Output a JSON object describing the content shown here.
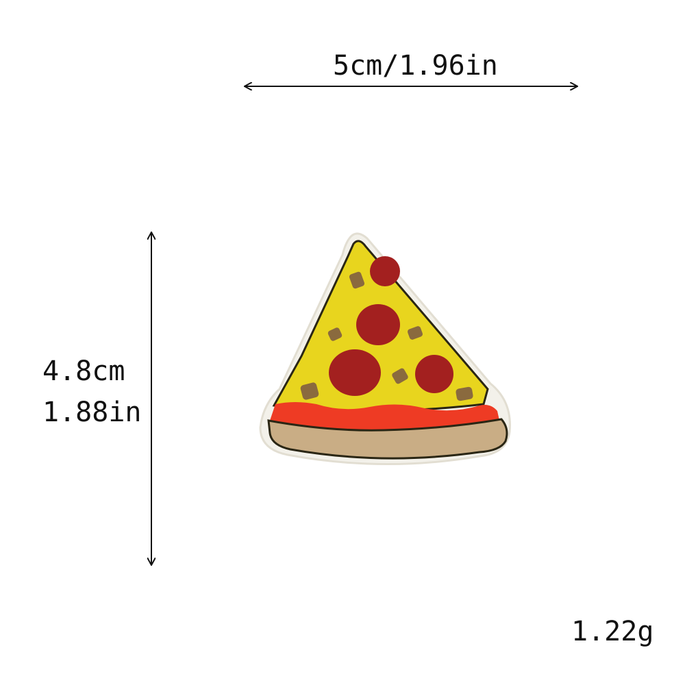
{
  "dimensions": {
    "width_label": "5cm/1.96in",
    "height_cm": "4.8cm",
    "height_in": "1.88in"
  },
  "weight_label": "1.22g",
  "colors": {
    "cheese": "#e8d51e",
    "pepperoni": "#a3201f",
    "sauce": "#ee3b24",
    "crust": "#c9ad85",
    "outline": "#2a2614",
    "backing": "#f3f1ea",
    "topping": "#8a6a3e"
  }
}
